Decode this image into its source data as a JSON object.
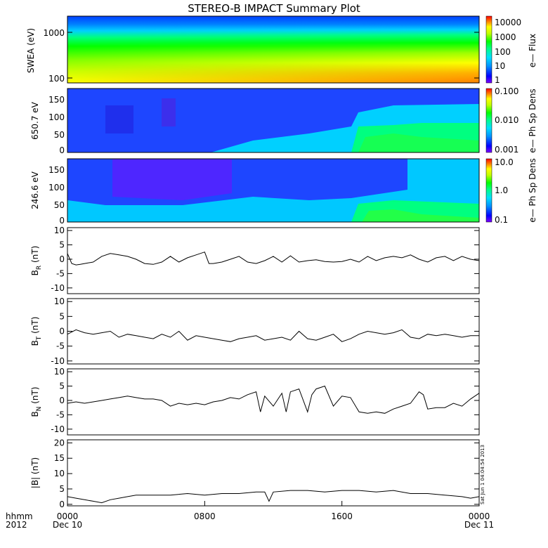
{
  "title": "STEREO-B IMPACT Summary Plot",
  "footer": {
    "left_top": "hhmm",
    "left_bottom": "2012",
    "ticks": [
      {
        "label": "0000",
        "sub": "Dec 10",
        "hour": 0
      },
      {
        "label": "0800",
        "sub": "",
        "hour": 8
      },
      {
        "label": "1600",
        "sub": "",
        "hour": 16
      },
      {
        "label": "0000",
        "sub": "Dec 11",
        "hour": 24
      }
    ],
    "timestamp": "Sat Jun 1 04:04:54 2013"
  },
  "colors": {
    "spectrogram_scale": [
      "#8000ff",
      "#0000ff",
      "#0090ff",
      "#00e0ff",
      "#00ff80",
      "#00ff00",
      "#c0ff00",
      "#ffff00",
      "#ff8000",
      "#ff0000"
    ],
    "line": "#000000"
  },
  "chart_data": [
    {
      "type": "heatmap",
      "name": "swea",
      "ylabel": "SWEA (eV)",
      "yscale": "log",
      "ylim": [
        90,
        2000
      ],
      "yticks": [
        "1000",
        "100"
      ],
      "colorbar_label": "e— Flux",
      "colorbar_ticks": [
        "10000",
        "1000",
        "100",
        "10",
        "1"
      ],
      "colorbar_scale": "log",
      "description_energy_bands": [
        {
          "energy_eV": 1500,
          "level": 0.12
        },
        {
          "energy_eV": 800,
          "level": 0.35
        },
        {
          "energy_eV": 400,
          "level": 0.5
        },
        {
          "energy_eV": 200,
          "level": 0.62
        },
        {
          "energy_eV": 100,
          "level": 0.72
        }
      ]
    },
    {
      "type": "heatmap",
      "name": "pad650",
      "ylabel": "650.7 eV",
      "ylim": [
        0,
        180
      ],
      "yticks": [
        "150",
        "100",
        "50",
        "0"
      ],
      "colorbar_label": "e— Ph Sp Dens",
      "colorbar_ticks": [
        "0.100",
        "0.010",
        "0.001"
      ],
      "colorbar_scale": "log"
    },
    {
      "type": "heatmap",
      "name": "pad246",
      "ylabel": "246.6 eV",
      "ylim": [
        0,
        180
      ],
      "yticks": [
        "150",
        "100",
        "50",
        "0"
      ],
      "colorbar_label": "e— Ph Sp Dens",
      "colorbar_ticks": [
        "10.0",
        "1.0",
        "0.1"
      ],
      "colorbar_scale": "log"
    },
    {
      "type": "line",
      "name": "br",
      "ylabel_main": "B",
      "ylabel_sub": "R",
      "ylabel_unit": " (nT)",
      "ylim": [
        -12,
        11
      ],
      "yticks": [
        "10",
        "5",
        "0",
        "-5",
        "-10"
      ],
      "x_hours": [
        0,
        0.25,
        0.5,
        0.75,
        1,
        1.5,
        2,
        2.5,
        3,
        3.5,
        4,
        4.5,
        5,
        5.5,
        6,
        6.5,
        7,
        7.5,
        8,
        8.25,
        8.5,
        9,
        9.5,
        10,
        10.5,
        11,
        11.5,
        12,
        12.5,
        13,
        13.5,
        14,
        14.5,
        15,
        15.5,
        16,
        16.5,
        17,
        17.5,
        18,
        18.5,
        19,
        19.5,
        20,
        20.5,
        21,
        21.5,
        22,
        22.5,
        23,
        23.5,
        24
      ],
      "values": [
        2,
        -1.5,
        -2,
        -1.8,
        -1.5,
        -1,
        1,
        2,
        1.5,
        1,
        0,
        -1.5,
        -1.8,
        -1,
        1,
        -1,
        0.5,
        1.5,
        2.5,
        -1.5,
        -1.5,
        -1,
        0,
        1,
        -1,
        -1.5,
        -0.5,
        1,
        -1,
        1.2,
        -1,
        -0.5,
        -0.2,
        -0.8,
        -1,
        -0.8,
        0,
        -1,
        1,
        -0.5,
        0.5,
        1,
        0.5,
        1.5,
        0,
        -1,
        0.5,
        1,
        -0.5,
        1,
        0,
        -0.5
      ]
    },
    {
      "type": "line",
      "name": "bt",
      "ylabel_main": "B",
      "ylabel_sub": "T",
      "ylabel_unit": " (nT)",
      "ylim": [
        -11,
        11
      ],
      "yticks": [
        "10",
        "5",
        "0",
        "-5",
        "-10"
      ],
      "x_hours": [
        0,
        0.5,
        1,
        1.5,
        2,
        2.5,
        3,
        3.5,
        4,
        4.5,
        5,
        5.5,
        6,
        6.5,
        7,
        7.5,
        8,
        8.5,
        9,
        9.5,
        10,
        10.5,
        11,
        11.5,
        12,
        12.5,
        13,
        13.5,
        14,
        14.5,
        15,
        15.5,
        16,
        16.5,
        17,
        17.5,
        18,
        18.5,
        19,
        19.5,
        20,
        20.5,
        21,
        21.5,
        22,
        22.5,
        23,
        23.5,
        24
      ],
      "values": [
        -1,
        0.5,
        -0.5,
        -1,
        -0.5,
        0,
        -2,
        -1,
        -1.5,
        -2,
        -2.5,
        -1,
        -2,
        0,
        -3,
        -1.5,
        -2,
        -2.5,
        -3,
        -3.5,
        -2.5,
        -2,
        -1.5,
        -3,
        -2.5,
        -2,
        -3,
        0,
        -2.5,
        -3,
        -2,
        -1,
        -3.5,
        -2.5,
        -1,
        0,
        -0.5,
        -1,
        -0.5,
        0.5,
        -2,
        -2.5,
        -1,
        -1.5,
        -1,
        -1.5,
        -2,
        -1.5,
        -1.5
      ]
    },
    {
      "type": "line",
      "name": "bn",
      "ylabel_main": "B",
      "ylabel_sub": "N",
      "ylabel_unit": " (nT)",
      "ylim": [
        -12,
        11
      ],
      "yticks": [
        "10",
        "5",
        "0",
        "-5",
        "-10"
      ],
      "x_hours": [
        0,
        0.5,
        1,
        1.5,
        2,
        2.5,
        3,
        3.5,
        4,
        4.5,
        5,
        5.5,
        6,
        6.5,
        7,
        7.5,
        8,
        8.5,
        9,
        9.5,
        10,
        10.5,
        11,
        11.25,
        11.5,
        12,
        12.5,
        12.75,
        13,
        13.5,
        14,
        14.25,
        14.5,
        15,
        15.5,
        16,
        16.5,
        17,
        17.5,
        18,
        18.5,
        19,
        19.5,
        20,
        20.5,
        20.75,
        21,
        21.5,
        22,
        22.5,
        23,
        23.5,
        24
      ],
      "values": [
        -1,
        -0.5,
        -1,
        -0.5,
        0,
        0.5,
        1,
        1.5,
        1,
        0.5,
        0.5,
        0,
        -2,
        -1,
        -1.5,
        -1,
        -1.5,
        -0.5,
        0,
        1,
        0.5,
        2,
        3,
        -4,
        1.5,
        -2,
        2.5,
        -4,
        3,
        4,
        -4,
        2,
        4,
        5,
        -2,
        1.5,
        1,
        -4,
        -4.5,
        -4,
        -4.5,
        -3,
        -2,
        -1,
        3,
        2,
        -3,
        -2.5,
        -2.5,
        -1,
        -2,
        0.5,
        2.5
      ]
    },
    {
      "type": "line",
      "name": "bmag",
      "ylabel_main": "|B|",
      "ylabel_sub": "",
      "ylabel_unit": " (nT)",
      "ylim": [
        -0.5,
        21
      ],
      "yticks": [
        "20",
        "15",
        "10",
        "5",
        "0"
      ],
      "x_hours": [
        0,
        0.5,
        1,
        1.5,
        2,
        2.5,
        3,
        3.5,
        4,
        5,
        6,
        7,
        8,
        9,
        10,
        11,
        11.5,
        11.75,
        12,
        13,
        14,
        15,
        16,
        17,
        18,
        19,
        20,
        21,
        22,
        23,
        23.5,
        24
      ],
      "values": [
        2.5,
        2,
        1.5,
        1,
        0.5,
        1.5,
        2,
        2.5,
        3,
        3,
        3,
        3.5,
        3,
        3.5,
        3.5,
        4,
        4,
        1,
        4,
        4.5,
        4.5,
        4,
        4.5,
        4.5,
        4,
        4.5,
        3.5,
        3.5,
        3,
        2.5,
        2,
        2.5
      ]
    }
  ]
}
